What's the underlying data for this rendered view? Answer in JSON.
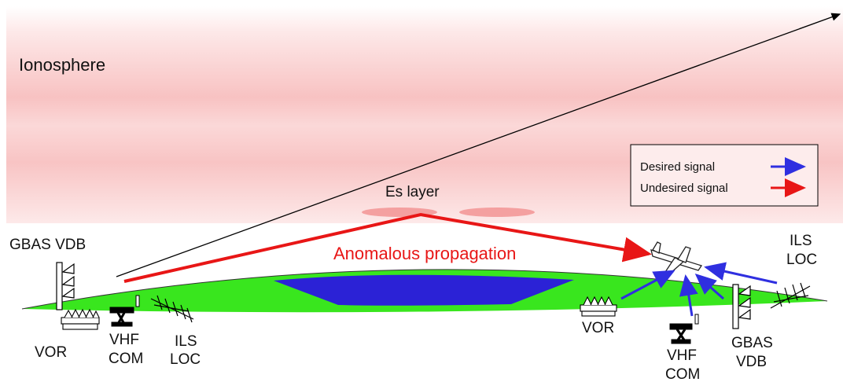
{
  "labels": {
    "ionosphere": "Ionosphere",
    "es_layer": "Es layer",
    "anomalous": "Anomalous propagation",
    "left_gbas": "GBAS VDB",
    "left_vor": "VOR",
    "left_vhf_1": "VHF",
    "left_vhf_2": "COM",
    "left_ils_1": "ILS",
    "left_ils_2": "LOC",
    "right_vor": "VOR",
    "right_vhf_1": "VHF",
    "right_vhf_2": "COM",
    "right_gbas_1": "GBAS",
    "right_gbas_2": "VDB",
    "right_ils_1": "ILS",
    "right_ils_2": "LOC"
  },
  "legend": {
    "desired": "Desired signal",
    "undesired": "Undesired signal"
  },
  "colors": {
    "desired": "#2f2fe0",
    "undesired": "#e81616",
    "coverage_green": "#39e61e",
    "coverage_blue": "#2b22d6",
    "ionosphere": "#f6b4b4",
    "es_patch": "#f28a8a"
  }
}
